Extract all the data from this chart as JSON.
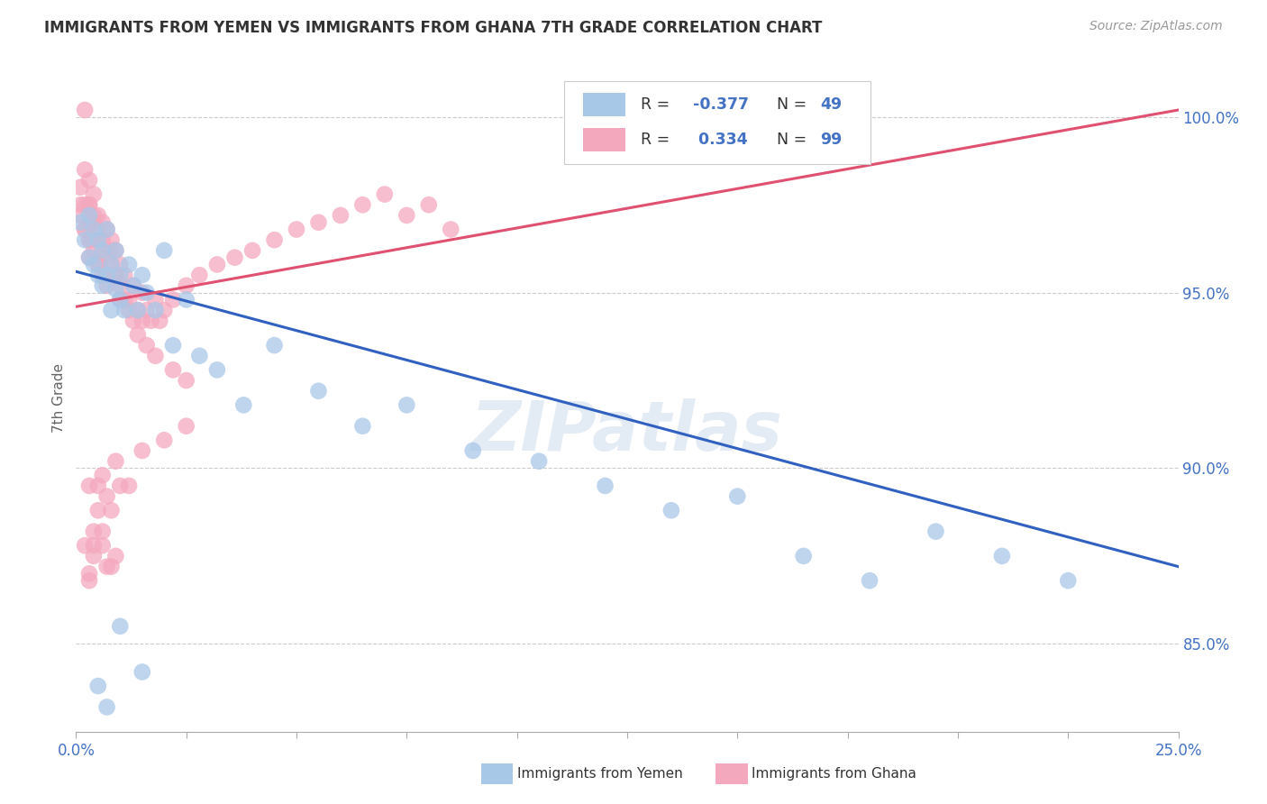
{
  "title": "IMMIGRANTS FROM YEMEN VS IMMIGRANTS FROM GHANA 7TH GRADE CORRELATION CHART",
  "source": "Source: ZipAtlas.com",
  "ylabel": "7th Grade",
  "ylabel_ticks": [
    "85.0%",
    "90.0%",
    "95.0%",
    "100.0%"
  ],
  "ylabel_values": [
    0.85,
    0.9,
    0.95,
    1.0
  ],
  "xlim": [
    0.0,
    0.25
  ],
  "ylim": [
    0.825,
    1.015
  ],
  "color_yemen": "#A8C8E8",
  "color_ghana": "#F4A8BE",
  "color_yemen_line": "#3060C0",
  "color_ghana_line": "#E05070",
  "watermark": "ZIPatlas",
  "background_color": "#FFFFFF",
  "yemen_line_x0": 0.0,
  "yemen_line_y0": 0.956,
  "yemen_line_x1": 0.25,
  "yemen_line_y1": 0.872,
  "ghana_line_x0": 0.0,
  "ghana_line_y0": 0.946,
  "ghana_line_x1": 0.25,
  "ghana_line_y1": 1.002,
  "yemen_pts_x": [
    0.001,
    0.002,
    0.003,
    0.003,
    0.004,
    0.004,
    0.005,
    0.005,
    0.006,
    0.006,
    0.007,
    0.007,
    0.008,
    0.008,
    0.009,
    0.009,
    0.01,
    0.01,
    0.011,
    0.012,
    0.013,
    0.014,
    0.015,
    0.016,
    0.018,
    0.02,
    0.022,
    0.025,
    0.028,
    0.032,
    0.038,
    0.045,
    0.055,
    0.065,
    0.075,
    0.09,
    0.105,
    0.12,
    0.135,
    0.15,
    0.165,
    0.18,
    0.195,
    0.21,
    0.225,
    0.005,
    0.007,
    0.01,
    0.015
  ],
  "yemen_pts_y": [
    0.97,
    0.965,
    0.972,
    0.96,
    0.958,
    0.968,
    0.965,
    0.955,
    0.962,
    0.952,
    0.968,
    0.955,
    0.958,
    0.945,
    0.962,
    0.951,
    0.955,
    0.948,
    0.945,
    0.958,
    0.952,
    0.945,
    0.955,
    0.95,
    0.945,
    0.962,
    0.935,
    0.948,
    0.932,
    0.928,
    0.918,
    0.935,
    0.922,
    0.912,
    0.918,
    0.905,
    0.902,
    0.895,
    0.888,
    0.892,
    0.875,
    0.868,
    0.882,
    0.875,
    0.868,
    0.838,
    0.832,
    0.855,
    0.842
  ],
  "ghana_pts_x": [
    0.001,
    0.001,
    0.001,
    0.002,
    0.002,
    0.002,
    0.002,
    0.003,
    0.003,
    0.003,
    0.003,
    0.003,
    0.004,
    0.004,
    0.004,
    0.005,
    0.005,
    0.005,
    0.006,
    0.006,
    0.006,
    0.007,
    0.007,
    0.007,
    0.008,
    0.008,
    0.009,
    0.009,
    0.01,
    0.01,
    0.011,
    0.012,
    0.013,
    0.014,
    0.015,
    0.016,
    0.017,
    0.018,
    0.019,
    0.02,
    0.022,
    0.025,
    0.028,
    0.032,
    0.036,
    0.04,
    0.045,
    0.05,
    0.055,
    0.06,
    0.065,
    0.07,
    0.075,
    0.08,
    0.085,
    0.002,
    0.003,
    0.003,
    0.004,
    0.004,
    0.005,
    0.005,
    0.006,
    0.007,
    0.008,
    0.009,
    0.01,
    0.011,
    0.012,
    0.013,
    0.014,
    0.016,
    0.018,
    0.022,
    0.025,
    0.015,
    0.009,
    0.007,
    0.005,
    0.003,
    0.004,
    0.006,
    0.008,
    0.004,
    0.003,
    0.002,
    0.006,
    0.005,
    0.007,
    0.009,
    0.012,
    0.015,
    0.02,
    0.025,
    0.01,
    0.008,
    0.006,
    0.004,
    0.003
  ],
  "ghana_pts_y": [
    0.98,
    0.975,
    0.972,
    0.985,
    1.002,
    0.975,
    0.968,
    0.975,
    0.982,
    0.97,
    0.965,
    0.96,
    0.978,
    0.97,
    0.965,
    0.972,
    0.965,
    0.958,
    0.97,
    0.962,
    0.955,
    0.968,
    0.96,
    0.952,
    0.965,
    0.958,
    0.962,
    0.955,
    0.958,
    0.948,
    0.955,
    0.948,
    0.952,
    0.945,
    0.95,
    0.945,
    0.942,
    0.948,
    0.942,
    0.945,
    0.948,
    0.952,
    0.955,
    0.958,
    0.96,
    0.962,
    0.965,
    0.968,
    0.97,
    0.972,
    0.975,
    0.978,
    0.972,
    0.975,
    0.968,
    0.968,
    0.975,
    0.965,
    0.972,
    0.962,
    0.968,
    0.958,
    0.965,
    0.955,
    0.962,
    0.955,
    0.952,
    0.948,
    0.945,
    0.942,
    0.938,
    0.935,
    0.932,
    0.928,
    0.925,
    0.942,
    0.875,
    0.872,
    0.888,
    0.895,
    0.882,
    0.878,
    0.872,
    0.878,
    0.87,
    0.878,
    0.898,
    0.895,
    0.892,
    0.902,
    0.895,
    0.905,
    0.908,
    0.912,
    0.895,
    0.888,
    0.882,
    0.875,
    0.868
  ]
}
